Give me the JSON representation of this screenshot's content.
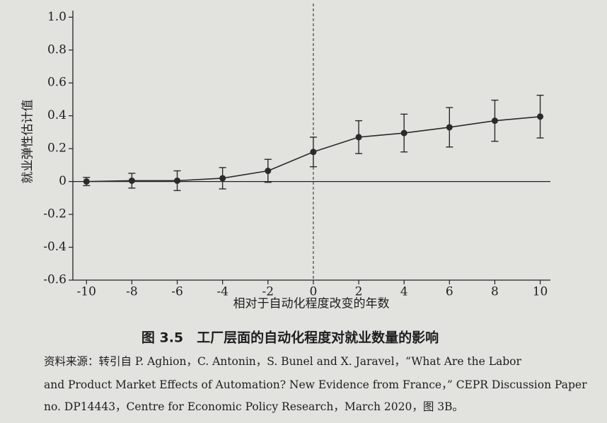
{
  "chart_data": {
    "type": "errorbar-line",
    "y_label": "就业弹性估计值",
    "x_label": "相对于自动化程度改变的年数",
    "caption": "图 3.5　工厂层面的自动化程度对就业数量的影响",
    "source": [
      "资料来源：转引自 P. Aghion，C. Antonin，S. Bunel and X. Jaravel，“What Are the Labor",
      "and Product Market Effects of Automation? New Evidence from France，” CEPR Discussion Paper",
      "no. DP14443，Centre for Economic Policy Research，March 2020，图 3B。"
    ],
    "x": [
      -10,
      -8,
      -6,
      -4,
      -2,
      0,
      2,
      4,
      6,
      8,
      10
    ],
    "series": [
      {
        "color": "#2a2a2a",
        "values": [
          0.0,
          0.005,
          0.005,
          0.02,
          0.065,
          0.18,
          0.27,
          0.295,
          0.33,
          0.37,
          0.395
        ],
        "errors": [
          0.025,
          0.045,
          0.06,
          0.065,
          0.07,
          0.09,
          0.1,
          0.115,
          0.12,
          0.125,
          0.13
        ]
      }
    ],
    "xlim": [
      -10.6,
      10.45
    ],
    "ylim": [
      -0.6,
      1.04
    ],
    "xticks": [
      -10,
      -8,
      -6,
      -4,
      -2,
      0,
      2,
      4,
      6,
      8,
      10
    ],
    "yticks": [
      -0.6,
      -0.4,
      -0.2,
      0,
      0.2,
      0.4,
      0.6,
      0.8,
      {
        "value": 1,
        "label": "1.0"
      }
    ]
  }
}
